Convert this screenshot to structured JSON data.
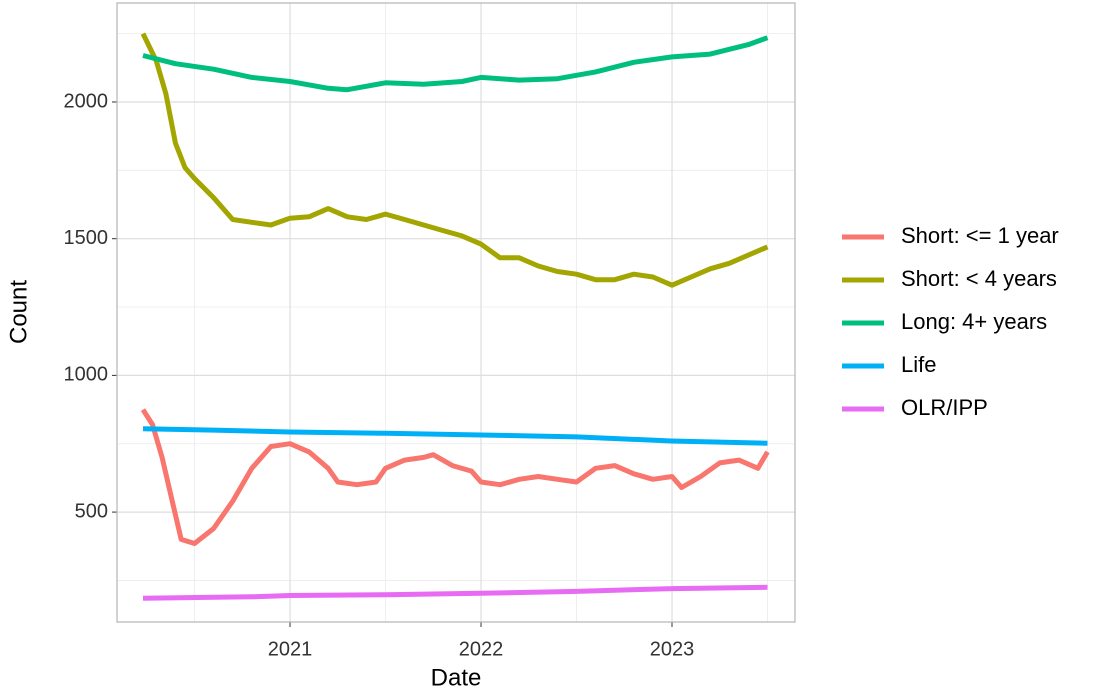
{
  "chart_data": {
    "type": "line",
    "x_label": "Date",
    "y_label": "Count",
    "xlim": [
      2020.094,
      2023.644
    ],
    "xticks": [
      2021,
      2022,
      2023
    ],
    "minor_xticks": [
      2020.5,
      2021.5,
      2022.5,
      2023.5
    ],
    "ylim": [
      98,
      2362
    ],
    "yticks": [
      500,
      1000,
      1500,
      2000
    ],
    "minor_yticks": [
      250,
      750,
      1250,
      1750,
      2250
    ],
    "grid": true,
    "legend": "right",
    "series": [
      {
        "name": "Short: <= 1 year",
        "color": "#F8766D",
        "x": [
          2020.23,
          2020.28,
          2020.33,
          2020.38,
          2020.43,
          2020.5,
          2020.6,
          2020.7,
          2020.8,
          2020.9,
          2021.0,
          2021.1,
          2021.2,
          2021.25,
          2021.35,
          2021.45,
          2021.5,
          2021.6,
          2021.7,
          2021.75,
          2021.85,
          2021.95,
          2022.0,
          2022.1,
          2022.2,
          2022.3,
          2022.4,
          2022.5,
          2022.6,
          2022.7,
          2022.8,
          2022.9,
          2023.0,
          2023.05,
          2023.15,
          2023.25,
          2023.35,
          2023.45,
          2023.5
        ],
        "values": [
          875,
          820,
          700,
          550,
          400,
          385,
          440,
          540,
          660,
          740,
          750,
          720,
          660,
          610,
          600,
          610,
          660,
          690,
          700,
          710,
          670,
          650,
          610,
          600,
          620,
          630,
          620,
          610,
          660,
          670,
          640,
          620,
          630,
          590,
          630,
          680,
          690,
          660,
          720
        ]
      },
      {
        "name": "Short: < 4 years",
        "color": "#A3A500",
        "x": [
          2020.23,
          2020.3,
          2020.35,
          2020.4,
          2020.45,
          2020.5,
          2020.6,
          2020.7,
          2020.8,
          2020.9,
          2021.0,
          2021.1,
          2021.2,
          2021.3,
          2021.4,
          2021.5,
          2021.6,
          2021.7,
          2021.8,
          2021.9,
          2022.0,
          2022.1,
          2022.2,
          2022.3,
          2022.4,
          2022.5,
          2022.6,
          2022.7,
          2022.8,
          2022.9,
          2023.0,
          2023.1,
          2023.2,
          2023.3,
          2023.4,
          2023.5
        ],
        "values": [
          2250,
          2150,
          2030,
          1850,
          1760,
          1720,
          1650,
          1570,
          1560,
          1550,
          1575,
          1580,
          1610,
          1580,
          1570,
          1590,
          1570,
          1550,
          1530,
          1510,
          1480,
          1430,
          1430,
          1400,
          1380,
          1370,
          1350,
          1350,
          1370,
          1360,
          1330,
          1360,
          1390,
          1410,
          1440,
          1470
        ]
      },
      {
        "name": "Long: 4+ years",
        "color": "#00BF7D",
        "x": [
          2020.23,
          2020.4,
          2020.6,
          2020.8,
          2021.0,
          2021.2,
          2021.3,
          2021.5,
          2021.7,
          2021.9,
          2022.0,
          2022.2,
          2022.4,
          2022.6,
          2022.8,
          2023.0,
          2023.2,
          2023.4,
          2023.5
        ],
        "values": [
          2170,
          2140,
          2120,
          2090,
          2075,
          2050,
          2045,
          2070,
          2065,
          2075,
          2090,
          2080,
          2085,
          2110,
          2145,
          2165,
          2175,
          2210,
          2235
        ]
      },
      {
        "name": "Life",
        "color": "#00B0F6",
        "x": [
          2020.23,
          2020.6,
          2021.0,
          2021.5,
          2022.0,
          2022.5,
          2023.0,
          2023.5
        ],
        "values": [
          805,
          800,
          793,
          788,
          782,
          775,
          760,
          752
        ]
      },
      {
        "name": "OLR/IPP",
        "color": "#E76BF3",
        "x": [
          2020.23,
          2020.8,
          2021.0,
          2021.5,
          2022.0,
          2022.5,
          2023.0,
          2023.5
        ],
        "values": [
          185,
          190,
          195,
          198,
          203,
          210,
          220,
          225
        ]
      }
    ]
  }
}
